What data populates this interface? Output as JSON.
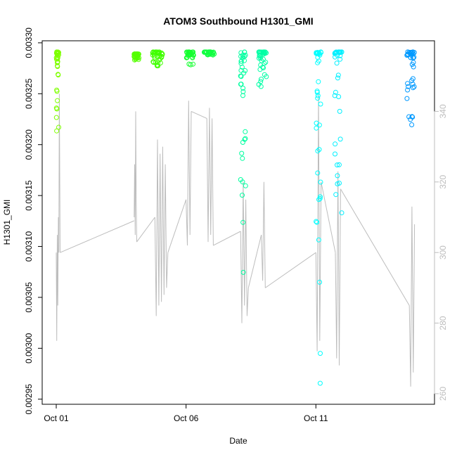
{
  "chart_data": {
    "type": "scatter",
    "title": "ATOM3 Southbound H1301_GMI",
    "xlabel": "Date",
    "ylabel": "H1301_GMI",
    "x_ticks": [
      "Oct 01",
      "Oct 06",
      "Oct 11"
    ],
    "xlim": [
      0.0,
      14.0
    ],
    "ylim": [
      0.002945,
      0.003302
    ],
    "y_ticks": [
      "0.00295",
      "0.00300",
      "0.00305",
      "0.00310",
      "0.00315",
      "0.00320",
      "0.00325",
      "0.00330"
    ],
    "y2lim": [
      257.0,
      360.0
    ],
    "y2_ticks": [
      "260",
      "280",
      "300",
      "320",
      "340"
    ],
    "grid": false,
    "legend": "none",
    "colors": {
      "secondary_line": "#bdbdbd",
      "axis": "#000000",
      "right_axis": "#bdbdbd"
    },
    "series": [
      {
        "style": "points",
        "clusters": [
          {
            "x": [
              0.0,
              0.1
            ],
            "y": [
              0.00321,
              0.003291
            ],
            "color": "#7fff00"
          },
          {
            "x": [
              3.0,
              3.2
            ],
            "y": [
              0.003283,
              0.003289
            ],
            "color": "#55ff00"
          },
          {
            "x": [
              3.7,
              4.1
            ],
            "y": [
              0.003277,
              0.003291
            ],
            "color": "#40ff00"
          },
          {
            "x": [
              5.0,
              5.3
            ],
            "y": [
              0.003277,
              0.003291
            ],
            "color": "#15ff30"
          },
          {
            "x": [
              5.7,
              6.1
            ],
            "y": [
              0.003288,
              0.003291
            ],
            "color": "#10ff40"
          },
          {
            "x": [
              7.1,
              7.3
            ],
            "y": [
              0.003033,
              0.003291
            ],
            "color": "#00ffa0"
          },
          {
            "x": [
              7.8,
              8.1
            ],
            "y": [
              0.003257,
              0.003291
            ],
            "color": "#00ffa5"
          },
          {
            "x": [
              10.0,
              10.2
            ],
            "y": [
              0.00295,
              0.003291
            ],
            "color": "#00ffff"
          },
          {
            "x": [
              10.7,
              11.0
            ],
            "y": [
              0.003125,
              0.003291
            ],
            "color": "#00f0ff"
          },
          {
            "x": [
              13.5,
              13.8
            ],
            "y": [
              0.003212,
              0.003291
            ],
            "color": "#0099ff"
          }
        ]
      },
      {
        "style": "line",
        "axis": "right",
        "segments": [
          {
            "x": [
              0.0,
              0.02,
              0.04,
              0.06,
              0.08,
              0.1,
              0.12,
              0.15
            ],
            "y": [
              300,
              275,
              305,
              285,
              310,
              300,
              345,
              300
            ]
          },
          {
            "x": [
              0.15,
              3.0
            ],
            "y": [
              300,
              309
            ]
          },
          {
            "x": [
              3.0,
              3.02,
              3.04,
              3.06,
              3.08,
              3.1
            ],
            "y": [
              310,
              325,
              305,
              340,
              315,
              303
            ]
          },
          {
            "x": [
              3.1,
              3.8
            ],
            "y": [
              303,
              310
            ]
          },
          {
            "x": [
              3.8,
              3.85,
              3.9,
              3.95,
              4.0,
              4.05,
              4.1,
              4.15,
              4.2,
              4.25,
              4.3
            ],
            "y": [
              310,
              282,
              332,
              285,
              328,
              286,
              330,
              288,
              325,
              290,
              300
            ]
          },
          {
            "x": [
              4.3,
              5.0
            ],
            "y": [
              300,
              315
            ]
          },
          {
            "x": [
              5.0,
              5.05,
              5.1,
              5.15,
              5.2
            ],
            "y": [
              315,
              302,
              343,
              305,
              340
            ]
          },
          {
            "x": [
              5.2,
              5.8
            ],
            "y": [
              340,
              338
            ]
          },
          {
            "x": [
              5.8,
              5.85,
              5.9,
              5.95,
              6.0,
              6.05
            ],
            "y": [
              338,
              303,
              341,
              305,
              338,
              302
            ]
          },
          {
            "x": [
              6.05,
              7.1
            ],
            "y": [
              302,
              306
            ]
          },
          {
            "x": [
              7.1,
              7.15,
              7.2,
              7.25,
              7.3,
              7.35,
              7.4
            ],
            "y": [
              306,
              280,
              320,
              285,
              315,
              282,
              290
            ]
          },
          {
            "x": [
              7.4,
              7.9
            ],
            "y": [
              290,
              305
            ]
          },
          {
            "x": [
              7.9,
              7.95,
              8.0,
              8.05
            ],
            "y": [
              305,
              292,
              320,
              290
            ]
          },
          {
            "x": [
              8.05,
              10.0
            ],
            "y": [
              290,
              300
            ]
          },
          {
            "x": [
              10.0,
              10.05,
              10.1,
              10.15,
              10.2
            ],
            "y": [
              300,
              272,
              345,
              275,
              320
            ]
          },
          {
            "x": [
              10.2,
              10.75
            ],
            "y": [
              320,
              300
            ]
          },
          {
            "x": [
              10.75,
              10.8,
              10.85,
              10.9,
              10.95
            ],
            "y": [
              300,
              270,
              323,
              268,
              318
            ]
          },
          {
            "x": [
              10.95,
              13.6
            ],
            "y": [
              318,
              285
            ]
          },
          {
            "x": [
              13.6,
              13.65,
              13.7,
              13.75,
              13.8
            ],
            "y": [
              285,
              262,
              313,
              266,
              308
            ]
          }
        ]
      }
    ]
  }
}
